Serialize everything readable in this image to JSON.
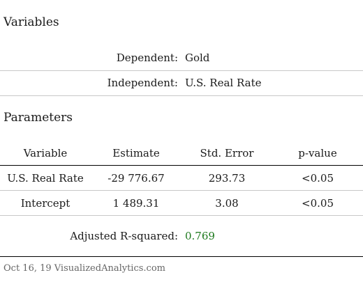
{
  "variables": {
    "title": "Variables",
    "dependent_label": "Dependent:",
    "dependent_value": "Gold",
    "independent_label": "Independent:",
    "independent_value": "U.S. Real Rate"
  },
  "parameters": {
    "title": "Parameters",
    "columns": [
      "Variable",
      "Estimate",
      "Std. Error",
      "p-value"
    ],
    "rows": [
      [
        "U.S. Real Rate",
        "-29 776.67",
        "293.73",
        "<0.05"
      ],
      [
        "Intercept",
        "1 489.31",
        "3.08",
        "<0.05"
      ]
    ]
  },
  "fit": {
    "label": "Adjusted R-squared:",
    "value": "0.769",
    "value_color": "#1f7a1f"
  },
  "footer": {
    "text": "Oct 16, 19 VisualizedAnalytics.com"
  }
}
